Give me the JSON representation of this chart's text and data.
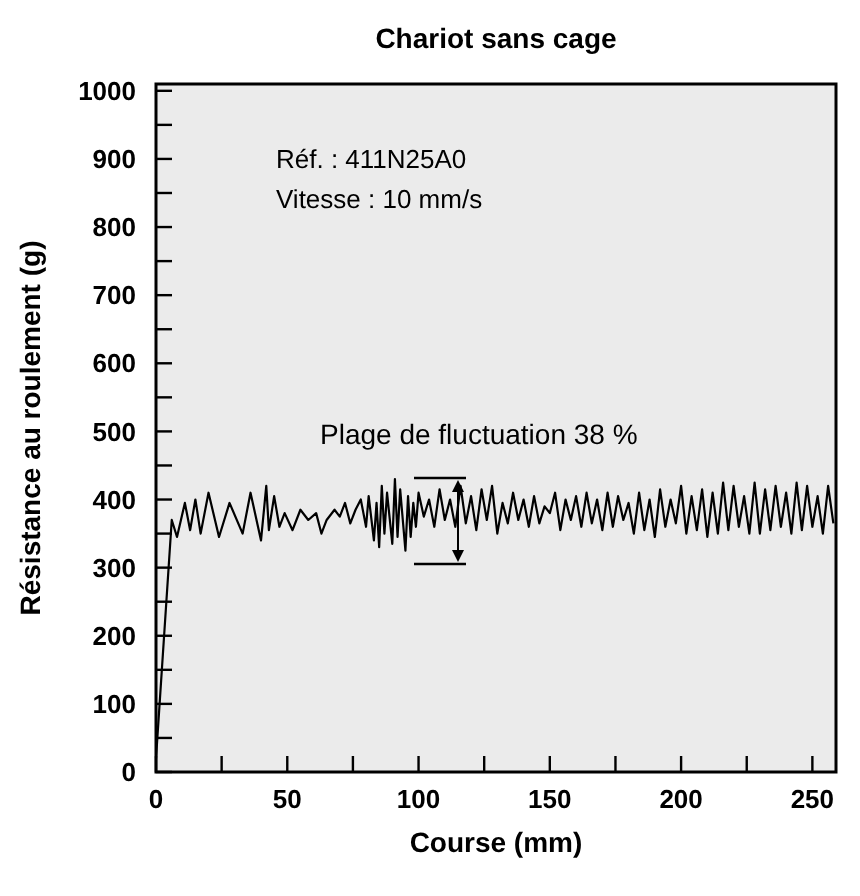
{
  "chart_data": {
    "type": "line",
    "title": "Chariot sans cage",
    "xlabel": "Course (mm)",
    "ylabel": "Résistance au roulement (g)",
    "xlim": [
      0,
      259
    ],
    "ylim": [
      0,
      1010
    ],
    "xticks": [
      0,
      {
        "value": 25,
        "label": null
      },
      50,
      {
        "value": 75,
        "label": null
      },
      100,
      {
        "value": 125,
        "label": null
      },
      150,
      {
        "value": 175,
        "label": null
      },
      200,
      {
        "value": 225,
        "label": null
      },
      250
    ],
    "yticks": [
      0,
      {
        "value": 50,
        "label": null
      },
      100,
      {
        "value": 150,
        "label": null
      },
      200,
      {
        "value": 250,
        "label": null
      },
      300,
      {
        "value": 350,
        "label": null
      },
      400,
      {
        "value": 450,
        "label": null
      },
      500,
      {
        "value": 550,
        "label": null
      },
      600,
      {
        "value": 650,
        "label": null
      },
      700,
      {
        "value": 750,
        "label": null
      },
      800,
      {
        "value": 850,
        "label": null
      },
      900,
      {
        "value": 950,
        "label": null
      },
      1000
    ],
    "grid": false,
    "line_style": "solid",
    "annotations": [
      "Réf. : 411N25A0",
      "Vitesse : 10 mm/s",
      "Plage de fluctuation 38 %"
    ],
    "series": [
      {
        "color": "#000000",
        "x": [
          0,
          6,
          8,
          11,
          13,
          15,
          17,
          20,
          24,
          28,
          33,
          36,
          40,
          42,
          43,
          45,
          47,
          49,
          52,
          55,
          58,
          61,
          63,
          65,
          68,
          70,
          72,
          74,
          76,
          78,
          80,
          81,
          83,
          84,
          85,
          86,
          87,
          88,
          90,
          91,
          92,
          93,
          95,
          96,
          97,
          98,
          99,
          100,
          102,
          104,
          106,
          108,
          110,
          112,
          114,
          116,
          118,
          120,
          122,
          124,
          126,
          128,
          130,
          132,
          134,
          136,
          138,
          140,
          142,
          144,
          146,
          148,
          150,
          152,
          154,
          156,
          158,
          160,
          162,
          164,
          166,
          168,
          170,
          172,
          174,
          176,
          178,
          180,
          182,
          184,
          186,
          188,
          190,
          192,
          194,
          196,
          198,
          200,
          202,
          204,
          206,
          208,
          210,
          212,
          214,
          216,
          218,
          220,
          222,
          224,
          226,
          228,
          230,
          232,
          234,
          236,
          238,
          240,
          242,
          244,
          246,
          248,
          250,
          252,
          254,
          256,
          258
        ],
        "values": [
          20,
          370,
          345,
          395,
          355,
          400,
          350,
          410,
          345,
          395,
          350,
          410,
          340,
          420,
          355,
          405,
          360,
          380,
          355,
          385,
          370,
          380,
          350,
          370,
          385,
          375,
          395,
          365,
          385,
          400,
          360,
          405,
          340,
          395,
          330,
          420,
          350,
          410,
          335,
          430,
          345,
          415,
          325,
          405,
          345,
          395,
          360,
          410,
          375,
          400,
          360,
          415,
          370,
          400,
          360,
          420,
          365,
          405,
          355,
          415,
          370,
          420,
          350,
          395,
          365,
          410,
          370,
          400,
          360,
          405,
          365,
          390,
          380,
          410,
          355,
          400,
          370,
          405,
          360,
          410,
          365,
          400,
          355,
          410,
          360,
          405,
          370,
          395,
          350,
          410,
          355,
          400,
          345,
          415,
          360,
          400,
          365,
          420,
          350,
          405,
          355,
          415,
          345,
          410,
          350,
          425,
          355,
          420,
          360,
          405,
          350,
          425,
          350,
          415,
          355,
          420,
          360,
          410,
          350,
          425,
          355,
          420,
          360,
          405,
          350,
          420,
          365
        ]
      }
    ]
  }
}
